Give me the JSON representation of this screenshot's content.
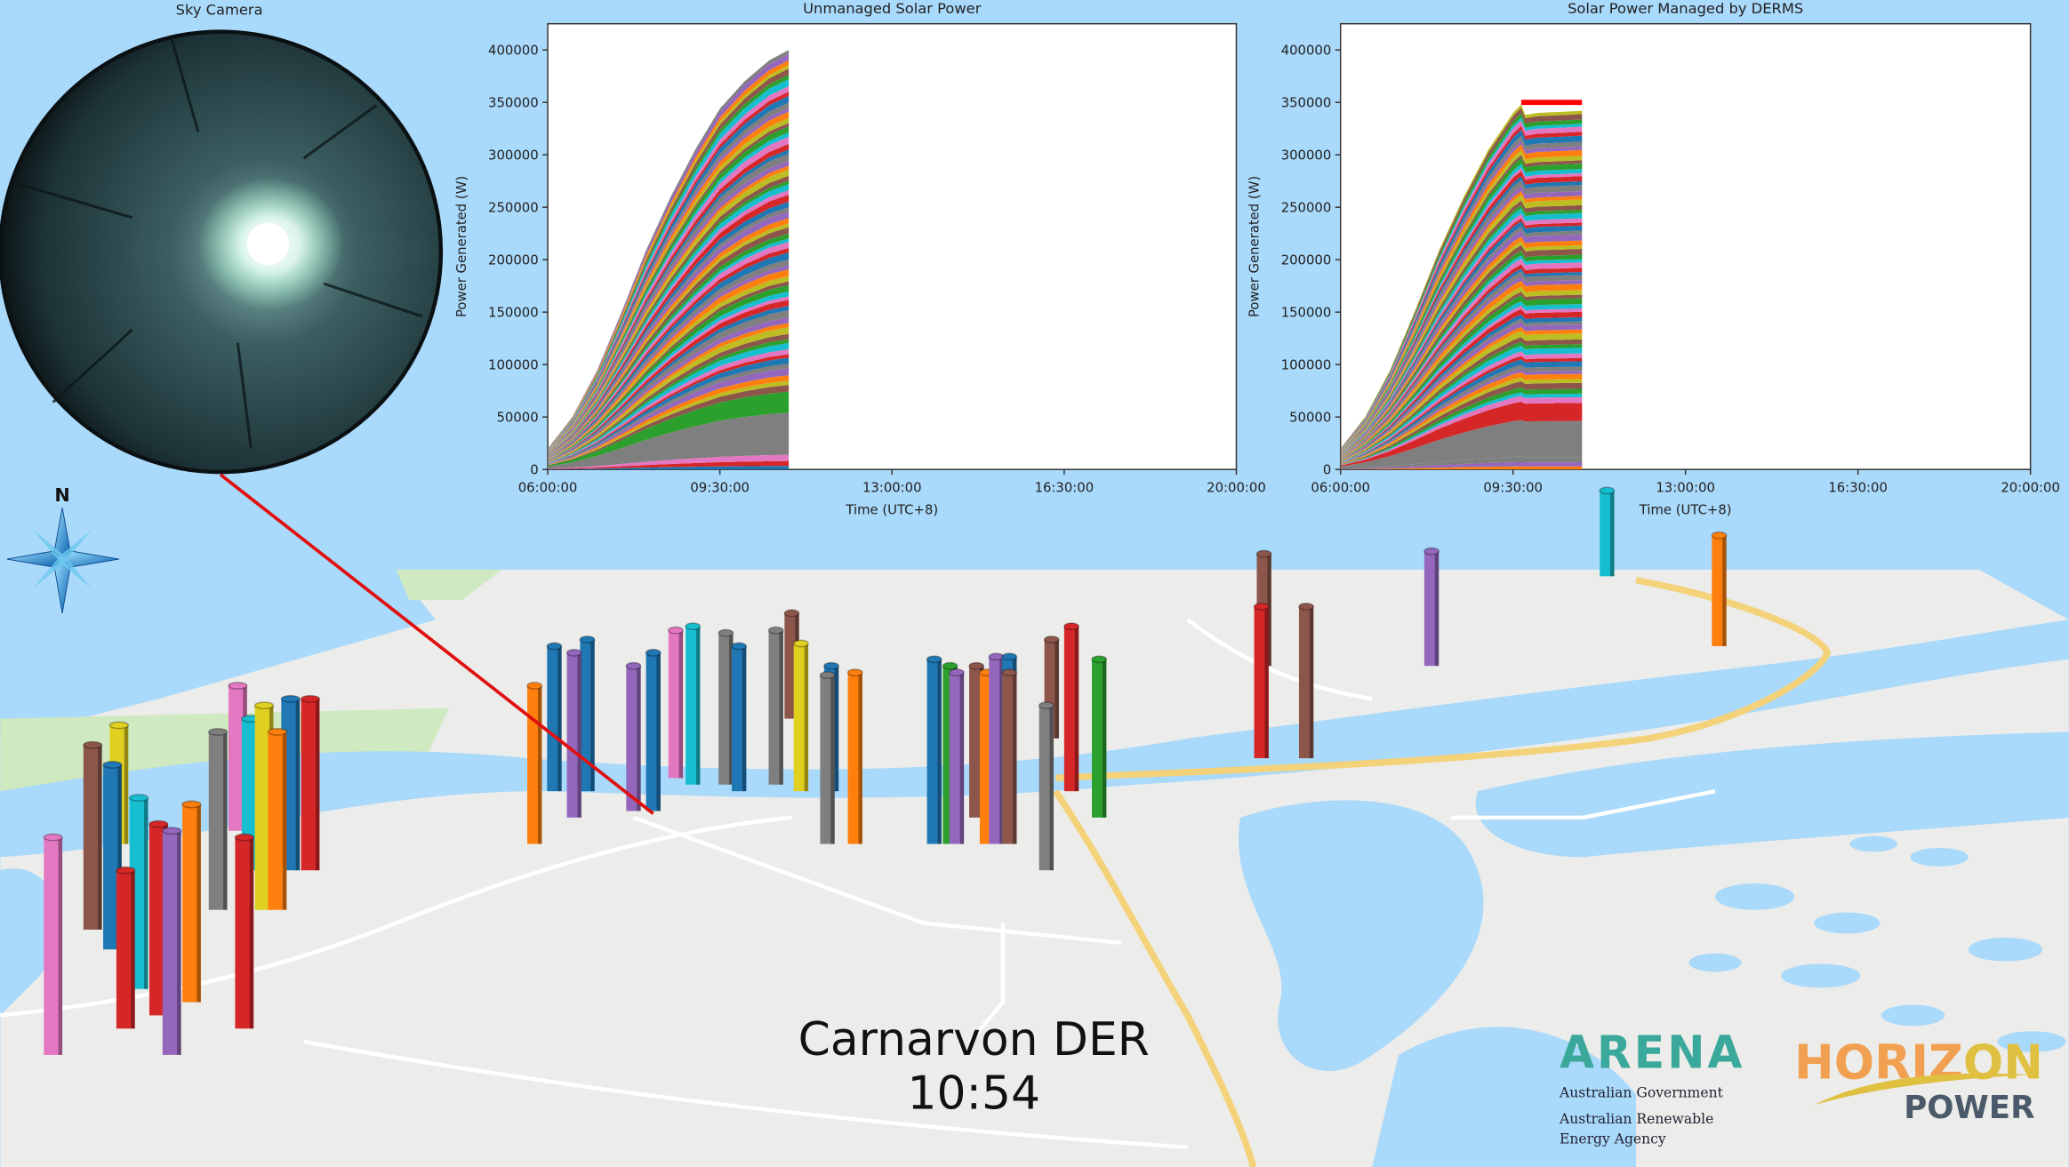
{
  "sky_camera": {
    "title": "Sky Camera"
  },
  "caption": {
    "title": "Carnarvon DER",
    "time": "10:54"
  },
  "compass": {
    "north_label": "N",
    "icon": "compass-rose-icon"
  },
  "logos": {
    "arena": {
      "name": "ARENA",
      "line1": "Australian Government",
      "line2": "Australian Renewable",
      "line3": "Energy Agency"
    },
    "horizon": {
      "name1": "HORIZ",
      "name2": "ON",
      "sub": "POWER"
    }
  },
  "colors": {
    "sky_water": "#a9d9fb",
    "land": "#ececea",
    "highway": "#f4d27a",
    "park": "#cfe9c0",
    "link_line": "#e01010",
    "cap_line": "#ff0000",
    "arena_teal": "#3aa89a",
    "horizon_orange": "#f0a050",
    "horizon_gold": "#e0c040",
    "palette": [
      "#1f77b4",
      "#ff7f0e",
      "#2ca02c",
      "#d62728",
      "#9467bd",
      "#8c564b",
      "#e377c2",
      "#7f7f7f",
      "#bcbd22",
      "#17becf"
    ]
  },
  "map_bar_colors": [
    "#e377c2",
    "#8c564b",
    "#e0d020",
    "#d62728",
    "#17becf",
    "#d62728",
    "#9467bd",
    "#ff7f0e",
    "#7f7f7f",
    "#e377c2",
    "#17becf",
    "#e0d020",
    "#ff7f0e",
    "#1f77b4",
    "#d62728",
    "#d62728",
    "#1f77b4",
    "#ff7f0e",
    "#1f77b4",
    "#9467bd",
    "#1f77b4",
    "#9467bd",
    "#1f77b4",
    "#e377c2",
    "#17becf",
    "#7f7f7f",
    "#1f77b4",
    "#7f7f7f",
    "#8c564b",
    "#e0d020",
    "#7f7f7f",
    "#1f77b4",
    "#ff7f0e",
    "#1f77b4",
    "#2ca02c",
    "#9467bd",
    "#8c564b",
    "#ff7f0e",
    "#9467bd",
    "#1f77b4",
    "#8c564b",
    "#7f7f7f",
    "#8c564b",
    "#d62728",
    "#2ca02c",
    "#8c564b",
    "#d62728",
    "#8c564b",
    "#9467bd",
    "#17becf",
    "#ff7f0e"
  ],
  "chart_data": [
    {
      "type": "area",
      "stacked": true,
      "title": "Unmanaged Solar Power",
      "xlabel": "Time (UTC+8)",
      "ylabel": "Power Generated (W)",
      "xlim": [
        "06:00:00",
        "20:00:00"
      ],
      "xticks": [
        "06:00:00",
        "09:30:00",
        "13:00:00",
        "16:30:00",
        "20:00:00"
      ],
      "ylim": [
        0,
        425000
      ],
      "yticks": [
        "0",
        "50000",
        "100000",
        "150000",
        "200000",
        "250000",
        "300000",
        "350000",
        "400000"
      ],
      "x": [
        "06:00",
        "06:30",
        "07:00",
        "07:30",
        "08:00",
        "08:30",
        "09:00",
        "09:30",
        "10:00",
        "10:30",
        "10:54"
      ],
      "total": [
        20000,
        50000,
        94000,
        150000,
        209000,
        260000,
        305000,
        344000,
        370000,
        390000,
        400000
      ],
      "grid": false
    },
    {
      "type": "area",
      "stacked": true,
      "title": "Solar Power Managed by DERMS",
      "xlabel": "Time (UTC+8)",
      "ylabel": "Power Generated (W)",
      "xlim": [
        "06:00:00",
        "20:00:00"
      ],
      "xticks": [
        "06:00:00",
        "09:30:00",
        "13:00:00",
        "16:30:00",
        "20:00:00"
      ],
      "ylim": [
        0,
        425000
      ],
      "yticks": [
        "0",
        "50000",
        "100000",
        "150000",
        "200000",
        "250000",
        "300000",
        "350000",
        "400000"
      ],
      "x": [
        "06:00",
        "06:30",
        "07:00",
        "07:30",
        "08:00",
        "08:30",
        "09:00",
        "09:30",
        "09:40",
        "09:45",
        "10:00",
        "10:30",
        "10:54"
      ],
      "total": [
        20000,
        50000,
        94000,
        150000,
        209000,
        260000,
        305000,
        340000,
        348000,
        338000,
        340000,
        341000,
        342000
      ],
      "cap_limit": 350000,
      "cap_from": "09:40",
      "grid": false
    }
  ]
}
